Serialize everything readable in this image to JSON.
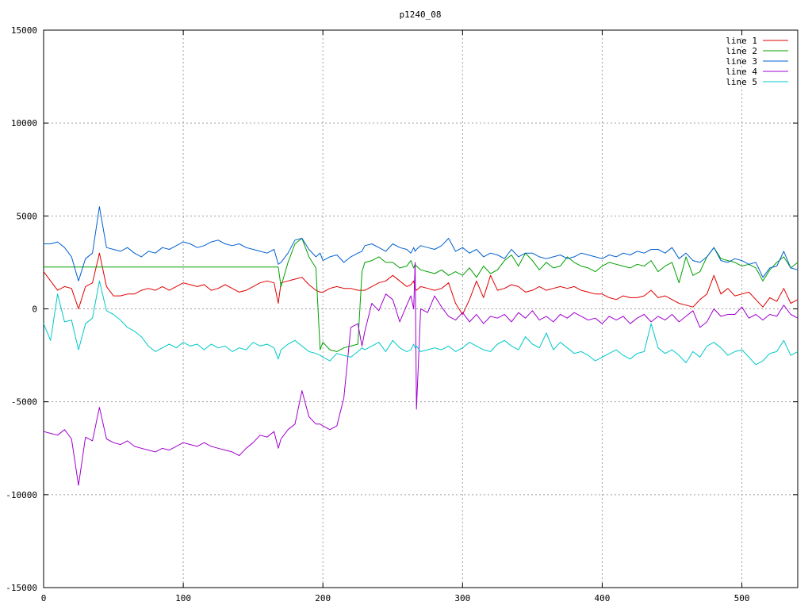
{
  "chart_data": {
    "type": "line",
    "title": "p1240_08",
    "xlabel": "",
    "ylabel": "",
    "xlim": [
      0,
      540
    ],
    "ylim": [
      -15000,
      15000
    ],
    "xticks": [
      0,
      100,
      200,
      300,
      400,
      500
    ],
    "yticks": [
      -15000,
      -10000,
      -5000,
      0,
      5000,
      10000,
      15000
    ],
    "grid": true,
    "legend_position": "top-right",
    "x": [
      0,
      5,
      10,
      15,
      20,
      25,
      30,
      35,
      40,
      45,
      50,
      55,
      60,
      65,
      70,
      75,
      80,
      85,
      90,
      95,
      100,
      105,
      110,
      115,
      120,
      125,
      130,
      135,
      140,
      145,
      150,
      155,
      160,
      165,
      168,
      170,
      175,
      180,
      185,
      190,
      195,
      198,
      200,
      205,
      210,
      215,
      220,
      225,
      228,
      230,
      235,
      240,
      245,
      250,
      255,
      260,
      263,
      265,
      266,
      267,
      270,
      275,
      280,
      285,
      290,
      295,
      300,
      305,
      310,
      315,
      320,
      325,
      330,
      335,
      340,
      345,
      350,
      355,
      360,
      365,
      370,
      375,
      380,
      385,
      390,
      395,
      400,
      405,
      410,
      415,
      420,
      425,
      430,
      435,
      440,
      445,
      450,
      455,
      460,
      465,
      470,
      475,
      480,
      485,
      490,
      495,
      500,
      505,
      510,
      515,
      520,
      525,
      530,
      535,
      540
    ],
    "series": [
      {
        "name": "line 1",
        "color": "#e00000",
        "values": [
          2000,
          1500,
          1000,
          1200,
          1100,
          0,
          1200,
          1400,
          3000,
          1200,
          700,
          700,
          800,
          800,
          1000,
          1100,
          1000,
          1200,
          1000,
          1200,
          1400,
          1300,
          1200,
          1300,
          1000,
          1100,
          1300,
          1100,
          900,
          1000,
          1200,
          1400,
          1500,
          1400,
          300,
          1400,
          1500,
          1600,
          1700,
          1300,
          1000,
          900,
          900,
          1100,
          1200,
          1100,
          1100,
          1000,
          1000,
          1000,
          1200,
          1400,
          1500,
          1800,
          1500,
          1200,
          1300,
          1500,
          1100,
          1000,
          1200,
          1100,
          1000,
          1100,
          1400,
          300,
          -300,
          500,
          1500,
          600,
          1800,
          1000,
          1100,
          1300,
          1200,
          900,
          1000,
          1200,
          1000,
          1100,
          1200,
          1100,
          1200,
          1000,
          900,
          800,
          800,
          600,
          500,
          700,
          600,
          600,
          700,
          1000,
          600,
          700,
          500,
          300,
          200,
          100,
          500,
          800,
          1800,
          800,
          1100,
          700,
          800,
          900,
          500,
          100,
          600,
          400,
          1100,
          300,
          500
        ]
      },
      {
        "name": "line 2",
        "color": "#00a000",
        "values": [
          2250,
          2250,
          2250,
          2250,
          2250,
          2250,
          2250,
          2250,
          2250,
          2250,
          2250,
          2250,
          2250,
          2250,
          2250,
          2250,
          2250,
          2250,
          2250,
          2250,
          2250,
          2250,
          2250,
          2250,
          2250,
          2250,
          2250,
          2250,
          2250,
          2250,
          2250,
          2250,
          2250,
          2250,
          2250,
          1200,
          2500,
          3500,
          3800,
          2800,
          2200,
          -2200,
          -1800,
          -2200,
          -2300,
          -2100,
          -2000,
          -1900,
          2000,
          2500,
          2600,
          2800,
          2500,
          2500,
          2200,
          2300,
          2600,
          2200,
          2400,
          2300,
          2100,
          2000,
          1900,
          2100,
          1800,
          2000,
          1800,
          2200,
          1700,
          2300,
          1900,
          2100,
          2600,
          2900,
          2300,
          3000,
          2600,
          2100,
          2500,
          2200,
          2300,
          2800,
          2500,
          2300,
          2200,
          2000,
          2300,
          2500,
          2400,
          2300,
          2200,
          2400,
          2300,
          2600,
          2000,
          2300,
          2500,
          1400,
          2800,
          1800,
          2000,
          2800,
          3300,
          2700,
          2600,
          2500,
          2300,
          2400,
          2200,
          1500,
          2100,
          2500,
          2800,
          2200,
          2500
        ]
      },
      {
        "name": "line 3",
        "color": "#0060d0",
        "values": [
          3500,
          3500,
          3600,
          3300,
          2800,
          1500,
          2700,
          3000,
          5500,
          3300,
          3200,
          3100,
          3300,
          3000,
          2800,
          3100,
          3000,
          3300,
          3200,
          3400,
          3600,
          3500,
          3300,
          3400,
          3600,
          3700,
          3500,
          3400,
          3500,
          3300,
          3200,
          3100,
          3000,
          3200,
          2400,
          2500,
          3000,
          3700,
          3800,
          3200,
          2800,
          3000,
          2600,
          2800,
          2900,
          2500,
          2800,
          3000,
          3100,
          3400,
          3500,
          3300,
          3100,
          3500,
          3300,
          3200,
          3000,
          3300,
          3100,
          3200,
          3400,
          3300,
          3200,
          3400,
          3800,
          3100,
          3300,
          3000,
          3200,
          2800,
          3000,
          2900,
          2700,
          3200,
          2800,
          3000,
          3000,
          2800,
          2700,
          2800,
          2900,
          2700,
          2800,
          3000,
          2900,
          2800,
          2700,
          2900,
          2800,
          3000,
          2900,
          3100,
          3000,
          3200,
          3200,
          3000,
          3300,
          2700,
          3000,
          2600,
          2500,
          2800,
          3300,
          2600,
          2500,
          2700,
          2600,
          2400,
          2500,
          1700,
          2200,
          2300,
          3100,
          2200,
          2100
        ]
      },
      {
        "name": "line 4",
        "color": "#a000d0",
        "values": [
          -6600,
          -6700,
          -6800,
          -6500,
          -7000,
          -9500,
          -6900,
          -7100,
          -5300,
          -7000,
          -7200,
          -7300,
          -7100,
          -7400,
          -7500,
          -7600,
          -7700,
          -7500,
          -7600,
          -7400,
          -7200,
          -7300,
          -7400,
          -7200,
          -7400,
          -7500,
          -7600,
          -7700,
          -7900,
          -7500,
          -7200,
          -6800,
          -6900,
          -6600,
          -7500,
          -7000,
          -6500,
          -6200,
          -4400,
          -5800,
          -6200,
          -6200,
          -6300,
          -6500,
          -6300,
          -4800,
          -1000,
          -800,
          -2000,
          -1200,
          300,
          -100,
          800,
          500,
          -700,
          200,
          700,
          0,
          2500,
          -5400,
          0,
          -200,
          700,
          100,
          -400,
          -600,
          -200,
          -700,
          -300,
          -800,
          -400,
          -500,
          -300,
          -700,
          -200,
          -500,
          -100,
          -600,
          -400,
          -700,
          -300,
          -500,
          -200,
          -400,
          -600,
          -500,
          -800,
          -400,
          -600,
          -400,
          -800,
          -500,
          -300,
          -700,
          -400,
          -600,
          -300,
          -700,
          -400,
          -100,
          -1000,
          -700,
          0,
          -400,
          -300,
          -300,
          100,
          -500,
          -300,
          -600,
          -300,
          -400,
          200,
          -300,
          -500
        ]
      },
      {
        "name": "line 5",
        "color": "#00c8c8",
        "values": [
          -800,
          -1700,
          800,
          -700,
          -600,
          -2200,
          -800,
          -500,
          1500,
          -100,
          -300,
          -600,
          -1000,
          -1200,
          -1500,
          -2000,
          -2300,
          -2100,
          -1900,
          -2100,
          -1800,
          -2000,
          -1900,
          -2200,
          -1900,
          -2100,
          -2000,
          -2300,
          -2100,
          -2200,
          -1800,
          -2000,
          -1900,
          -2100,
          -2700,
          -2200,
          -1900,
          -1700,
          -2000,
          -2300,
          -2400,
          -2500,
          -2600,
          -2800,
          -2400,
          -2500,
          -2600,
          -2300,
          -2100,
          -2200,
          -2000,
          -1800,
          -2300,
          -1700,
          -2100,
          -2300,
          -2200,
          -1900,
          -2100,
          -2000,
          -2300,
          -2200,
          -2100,
          -2200,
          -2000,
          -2300,
          -2100,
          -1800,
          -2000,
          -2200,
          -2300,
          -1900,
          -1700,
          -2000,
          -2200,
          -1500,
          -1900,
          -2100,
          -1300,
          -2200,
          -1800,
          -2100,
          -2400,
          -2300,
          -2500,
          -2800,
          -2600,
          -2400,
          -2200,
          -2500,
          -2700,
          -2400,
          -2300,
          -800,
          -2100,
          -2400,
          -2200,
          -2500,
          -2900,
          -2300,
          -2600,
          -2000,
          -1800,
          -2100,
          -2500,
          -2300,
          -2200,
          -2600,
          -3000,
          -2800,
          -2400,
          -2300,
          -1700,
          -2500,
          -2300
        ]
      }
    ]
  }
}
